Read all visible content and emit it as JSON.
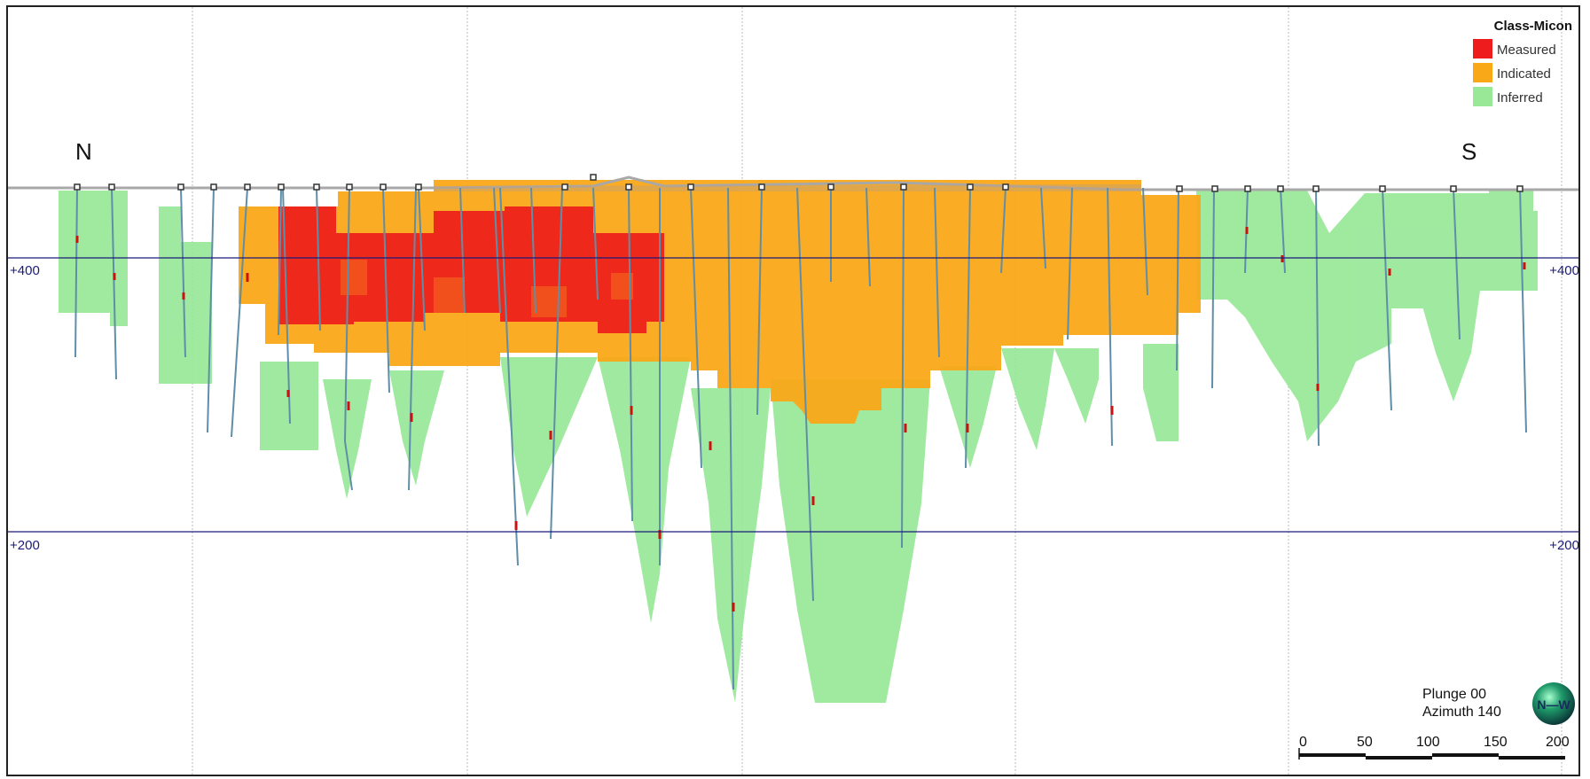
{
  "legend": {
    "title": "Class-Micon",
    "items": [
      {
        "label": "Measured",
        "color": "#ee1c1c"
      },
      {
        "label": "Indicated",
        "color": "#f9a818"
      },
      {
        "label": "Inferred",
        "color": "#98e898"
      }
    ]
  },
  "compass": {
    "north": "N",
    "south": "S"
  },
  "elevations": [
    {
      "label_left": "+400",
      "label_right": "+400"
    },
    {
      "label_left": "+200",
      "label_right": "+200"
    }
  ],
  "view": {
    "plunge": "Plunge 00",
    "azimuth": "Azimuth 140",
    "orientation_icon": "orientation-globe-icon"
  },
  "scale_bar": {
    "ticks": [
      "0",
      "50",
      "100",
      "150",
      "200"
    ]
  },
  "colors": {
    "measured": "#ee1c1c",
    "indicated": "#f9a818",
    "inferred": "#98e898",
    "gridline": "#1a1a7a",
    "drillhole": "#5f8fa8",
    "topography": "#a8a8a8"
  }
}
